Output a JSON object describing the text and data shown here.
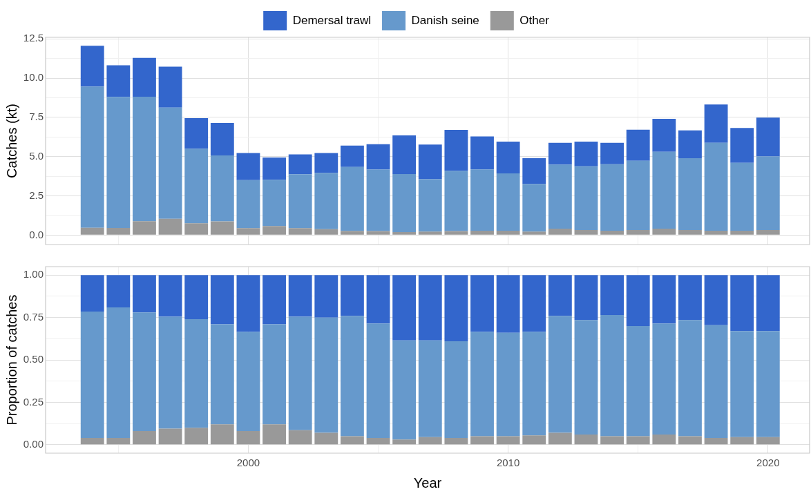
{
  "chart_data": [
    {
      "type": "bar",
      "stacked": true,
      "ylabel": "Catches (kt)",
      "x": [
        1994,
        1995,
        1996,
        1997,
        1998,
        1999,
        2000,
        2001,
        2002,
        2003,
        2004,
        2005,
        2006,
        2007,
        2008,
        2009,
        2010,
        2011,
        2012,
        2013,
        2014,
        2015,
        2016,
        2017,
        2018,
        2019,
        2020
      ],
      "series": [
        {
          "name": "Other",
          "color": "#999999",
          "values": [
            0.47,
            0.46,
            0.89,
            1.04,
            0.75,
            0.87,
            0.44,
            0.58,
            0.44,
            0.38,
            0.27,
            0.26,
            0.19,
            0.22,
            0.26,
            0.28,
            0.28,
            0.22,
            0.41,
            0.32,
            0.28,
            0.32,
            0.41,
            0.32,
            0.28,
            0.28,
            0.32
          ]
        },
        {
          "name": "Danish seine",
          "color": "#6699cc",
          "values": [
            9.0,
            8.34,
            7.93,
            7.08,
            4.75,
            4.21,
            3.06,
            2.95,
            3.44,
            3.59,
            4.07,
            3.91,
            3.7,
            3.34,
            3.84,
            3.91,
            3.65,
            3.04,
            4.08,
            4.06,
            4.23,
            4.41,
            4.9,
            4.58,
            5.6,
            4.32,
            4.69
          ]
        },
        {
          "name": "Demersal trawl",
          "color": "#3366cc",
          "values": [
            2.59,
            2.02,
            2.47,
            2.61,
            1.95,
            2.06,
            1.73,
            1.41,
            1.26,
            1.26,
            1.36,
            1.62,
            2.46,
            2.21,
            2.6,
            2.1,
            2.03,
            1.64,
            1.39,
            1.58,
            1.37,
            1.99,
            2.1,
            1.77,
            2.44,
            2.22,
            2.48
          ]
        }
      ],
      "xlim": [
        1992.2,
        2021.6
      ],
      "xticks": [
        {
          "value": 1995,
          "label": null
        },
        2000,
        {
          "value": 2005,
          "label": null
        },
        2010,
        {
          "value": 2015,
          "label": null
        },
        2020
      ],
      "ylim": [
        -0.6,
        12.6
      ],
      "yticks": [
        {
          "value": 0,
          "label": "0.0"
        },
        {
          "value": 1.25,
          "label": null
        },
        2.5,
        {
          "value": 3.75,
          "label": null
        },
        {
          "value": 5,
          "label": "5.0"
        },
        {
          "value": 6.25,
          "label": null
        },
        7.5,
        {
          "value": 8.75,
          "label": null
        },
        {
          "value": 10,
          "label": "10.0"
        },
        {
          "value": 11.25,
          "label": null
        },
        12.5
      ],
      "tick_labels": "y",
      "grid": true,
      "legend": "top"
    },
    {
      "type": "bar",
      "stacked": true,
      "ylabel": "Proportion of catches",
      "xlabel": "Year",
      "x": [
        1994,
        1995,
        1996,
        1997,
        1998,
        1999,
        2000,
        2001,
        2002,
        2003,
        2004,
        2005,
        2006,
        2007,
        2008,
        2009,
        2010,
        2011,
        2012,
        2013,
        2014,
        2015,
        2016,
        2017,
        2018,
        2019,
        2020
      ],
      "series": [
        {
          "color": "#999999",
          "values": [
            0.04,
            0.04,
            0.08,
            0.095,
            0.1,
            0.12,
            0.08,
            0.12,
            0.085,
            0.07,
            0.05,
            0.04,
            0.03,
            0.045,
            0.04,
            0.05,
            0.05,
            0.055,
            0.07,
            0.06,
            0.05,
            0.05,
            0.06,
            0.05,
            0.04,
            0.045,
            0.045
          ]
        },
        {
          "color": "#6699cc",
          "values": [
            0.745,
            0.77,
            0.7,
            0.66,
            0.64,
            0.59,
            0.585,
            0.59,
            0.67,
            0.68,
            0.71,
            0.675,
            0.585,
            0.57,
            0.57,
            0.615,
            0.61,
            0.61,
            0.69,
            0.675,
            0.715,
            0.65,
            0.655,
            0.685,
            0.665,
            0.625,
            0.625
          ]
        },
        {
          "color": "#3366cc",
          "values": [
            0.215,
            0.19,
            0.22,
            0.245,
            0.26,
            0.29,
            0.335,
            0.29,
            0.245,
            0.25,
            0.24,
            0.285,
            0.385,
            0.385,
            0.39,
            0.335,
            0.34,
            0.335,
            0.24,
            0.265,
            0.235,
            0.3,
            0.285,
            0.265,
            0.295,
            0.33,
            0.33
          ]
        }
      ],
      "xlim": [
        1992.2,
        2021.6
      ],
      "xticks": [
        {
          "value": 1995,
          "label": null
        },
        2000,
        {
          "value": 2005,
          "label": null
        },
        2010,
        {
          "value": 2015,
          "label": null
        },
        2020
      ],
      "ylim": [
        -0.05,
        1.05
      ],
      "yticks": [
        {
          "value": 0,
          "label": "0.00"
        },
        {
          "value": 0.125,
          "label": null
        },
        0.25,
        {
          "value": 0.375,
          "label": null
        },
        {
          "value": 0.5,
          "label": "0.50"
        },
        {
          "value": 0.625,
          "label": null
        },
        0.75,
        {
          "value": 0.875,
          "label": null
        },
        {
          "value": 1,
          "label": "1.00"
        }
      ],
      "grid": true
    }
  ]
}
